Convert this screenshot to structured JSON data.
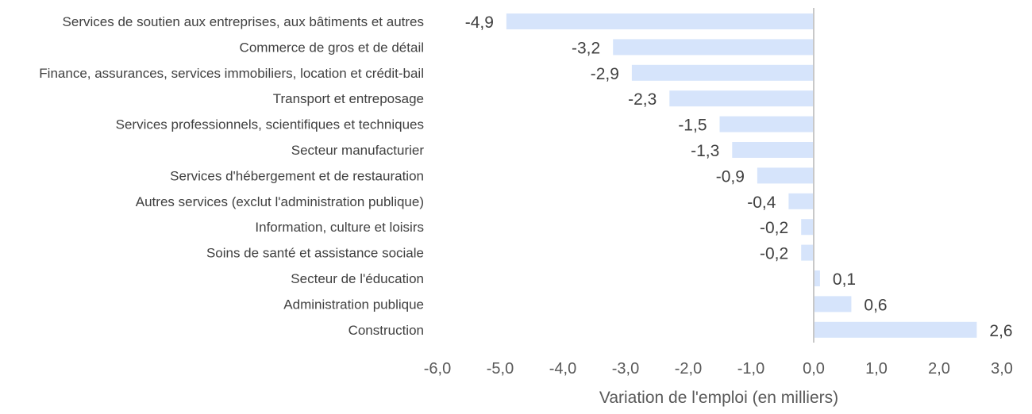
{
  "chart_data": {
    "type": "bar",
    "orientation": "horizontal",
    "title": "",
    "xlabel": "Variation de l'emploi (en milliers)",
    "ylabel": "",
    "xlim": [
      -6.0,
      3.0
    ],
    "xticks": [
      -6,
      -5,
      -4,
      -3,
      -2,
      -1,
      0,
      1,
      2,
      3
    ],
    "xtick_labels": [
      "-6,0",
      "-5,0",
      "-4,0",
      "-3,0",
      "-2,0",
      "-1,0",
      "0,0",
      "1,0",
      "2,0",
      "3,0"
    ],
    "grid": false,
    "bar_color": "#d6e4fb",
    "axis_color": "#c8c8c8",
    "categories": [
      "Services de soutien aux entreprises, aux bâtiments et autres",
      "Commerce de gros et de détail",
      "Finance, assurances, services immobiliers, location et crédit-bail",
      "Transport et entreposage",
      "Services professionnels, scientifiques et techniques",
      "Secteur manufacturier",
      "Services d'hébergement et de restauration",
      "Autres services (exclut l'administration publique)",
      "Information, culture et loisirs",
      "Soins de santé et assistance sociale",
      "Secteur de l'éducation",
      "Administration publique",
      "Construction"
    ],
    "values": [
      -4.9,
      -3.2,
      -2.9,
      -2.3,
      -1.5,
      -1.3,
      -0.9,
      -0.4,
      -0.2,
      -0.2,
      0.1,
      0.6,
      2.6
    ],
    "value_labels": [
      "-4,9",
      "-3,2",
      "-2,9",
      "-2,3",
      "-1,5",
      "-1,3",
      "-0,9",
      "-0,4",
      "-0,2",
      "-0,2",
      "0,1",
      "0,6",
      "2,6"
    ]
  }
}
